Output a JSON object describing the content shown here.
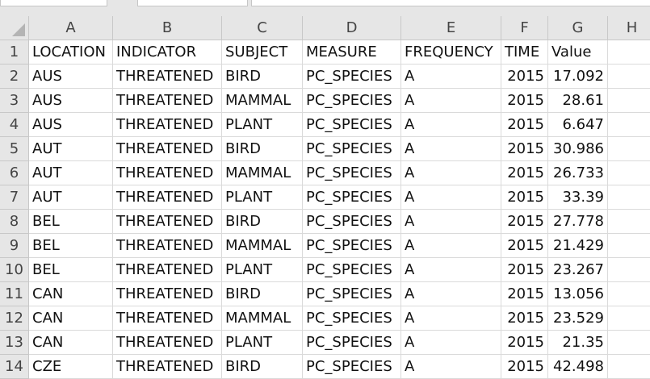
{
  "columns": [
    "A",
    "B",
    "C",
    "D",
    "E",
    "F",
    "G",
    "H"
  ],
  "rows": [
    {
      "num": "1",
      "cells": [
        "LOCATION",
        "INDICATOR",
        "SUBJECT",
        "MEASURE",
        "FREQUENCY",
        "TIME",
        "Value"
      ]
    },
    {
      "num": "2",
      "cells": [
        "AUS",
        "THREATENED",
        "BIRD",
        "PC_SPECIES",
        "A",
        "2015",
        "17.092"
      ]
    },
    {
      "num": "3",
      "cells": [
        "AUS",
        "THREATENED",
        "MAMMAL",
        "PC_SPECIES",
        "A",
        "2015",
        "28.61"
      ]
    },
    {
      "num": "4",
      "cells": [
        "AUS",
        "THREATENED",
        "PLANT",
        "PC_SPECIES",
        "A",
        "2015",
        "6.647"
      ]
    },
    {
      "num": "5",
      "cells": [
        "AUT",
        "THREATENED",
        "BIRD",
        "PC_SPECIES",
        "A",
        "2015",
        "30.986"
      ]
    },
    {
      "num": "6",
      "cells": [
        "AUT",
        "THREATENED",
        "MAMMAL",
        "PC_SPECIES",
        "A",
        "2015",
        "26.733"
      ]
    },
    {
      "num": "7",
      "cells": [
        "AUT",
        "THREATENED",
        "PLANT",
        "PC_SPECIES",
        "A",
        "2015",
        "33.39"
      ]
    },
    {
      "num": "8",
      "cells": [
        "BEL",
        "THREATENED",
        "BIRD",
        "PC_SPECIES",
        "A",
        "2015",
        "27.778"
      ]
    },
    {
      "num": "9",
      "cells": [
        "BEL",
        "THREATENED",
        "MAMMAL",
        "PC_SPECIES",
        "A",
        "2015",
        "21.429"
      ]
    },
    {
      "num": "10",
      "cells": [
        "BEL",
        "THREATENED",
        "PLANT",
        "PC_SPECIES",
        "A",
        "2015",
        "23.267"
      ]
    },
    {
      "num": "11",
      "cells": [
        "CAN",
        "THREATENED",
        "BIRD",
        "PC_SPECIES",
        "A",
        "2015",
        "13.056"
      ]
    },
    {
      "num": "12",
      "cells": [
        "CAN",
        "THREATENED",
        "MAMMAL",
        "PC_SPECIES",
        "A",
        "2015",
        "23.529"
      ]
    },
    {
      "num": "13",
      "cells": [
        "CAN",
        "THREATENED",
        "PLANT",
        "PC_SPECIES",
        "A",
        "2015",
        "21.35"
      ]
    },
    {
      "num": "14",
      "cells": [
        "CZE",
        "THREATENED",
        "BIRD",
        "PC_SPECIES",
        "A",
        "2015",
        "42.498"
      ]
    }
  ]
}
